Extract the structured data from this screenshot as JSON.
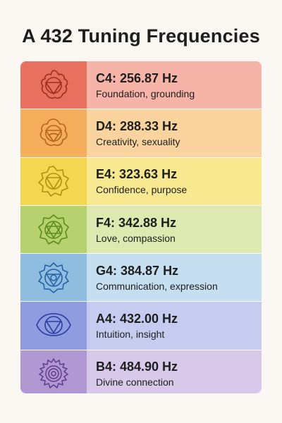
{
  "title": "A 432 Tuning Frequencies",
  "rows": [
    {
      "note": "C4: 256.87 Hz",
      "desc": "Foundation, grounding",
      "icon": "root-chakra-icon",
      "icon_bg": "#e8705f",
      "text_bg": "#f6b3a8",
      "stroke": "#9e2d20"
    },
    {
      "note": "D4: 288.33 Hz",
      "desc": "Creativity, sexuality",
      "icon": "sacral-chakra-icon",
      "icon_bg": "#f5ae5b",
      "text_bg": "#f9d49f",
      "stroke": "#b5641c"
    },
    {
      "note": "E4: 323.63 Hz",
      "desc": "Confidence, purpose",
      "icon": "solar-plexus-chakra-icon",
      "icon_bg": "#f4d651",
      "text_bg": "#f8e88f",
      "stroke": "#b28e12"
    },
    {
      "note": "F4: 342.88 Hz",
      "desc": "Love, compassion",
      "icon": "heart-chakra-icon",
      "icon_bg": "#b6d16f",
      "text_bg": "#dce9b0",
      "stroke": "#5d8a20"
    },
    {
      "note": "G4: 384.87 Hz",
      "desc": "Communication, expression",
      "icon": "throat-chakra-icon",
      "icon_bg": "#8ebde0",
      "text_bg": "#c5def0",
      "stroke": "#2563a6"
    },
    {
      "note": "A4: 432.00 Hz",
      "desc": "Intuition, insight",
      "icon": "third-eye-chakra-icon",
      "icon_bg": "#8f9ce0",
      "text_bg": "#c6ccef",
      "stroke": "#2d3ca0"
    },
    {
      "note": "B4: 484.90 Hz",
      "desc": "Divine connection",
      "icon": "crown-chakra-icon",
      "icon_bg": "#b198d3",
      "text_bg": "#d8c8ea",
      "stroke": "#5d3d8e"
    }
  ]
}
